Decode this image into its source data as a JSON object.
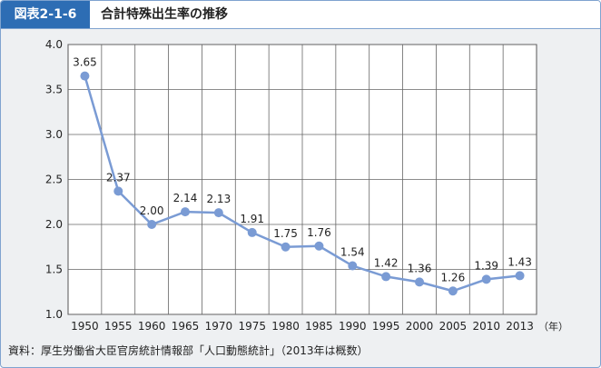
{
  "header": {
    "figure_label": "図表2-1-6",
    "title": "合計特殊出生率の推移"
  },
  "source_note": "資料：厚生労働省大臣官房統計情報部「人口動態統計」（2013年は概数）",
  "colors": {
    "header_label_bg": "#2d6db4",
    "line": "#7a9bd4",
    "marker": "#7a9bd4",
    "plot_bg": "#ffffff",
    "outer_bg": "#eef0f2"
  },
  "chart_data": {
    "type": "line",
    "x": [
      "1950",
      "1955",
      "1960",
      "1965",
      "1970",
      "1975",
      "1980",
      "1985",
      "1990",
      "1995",
      "2000",
      "2005",
      "2010",
      "2013"
    ],
    "series": [
      {
        "values": [
          3.65,
          2.37,
          2.0,
          2.14,
          2.13,
          1.91,
          1.75,
          1.76,
          1.54,
          1.42,
          1.36,
          1.26,
          1.39,
          1.43
        ],
        "labels": [
          "3.65",
          "2.37",
          "2.00",
          "2.14",
          "2.13",
          "1.91",
          "1.75",
          "1.76",
          "1.54",
          "1.42",
          "1.36",
          "1.26",
          "1.39",
          "1.43"
        ]
      }
    ],
    "ylim": [
      1.0,
      4.0
    ],
    "yticks": [
      "1.0",
      "1.5",
      "2.0",
      "2.5",
      "3.0",
      "3.5",
      "4.0"
    ],
    "x_unit": "（年）",
    "grid": true
  }
}
